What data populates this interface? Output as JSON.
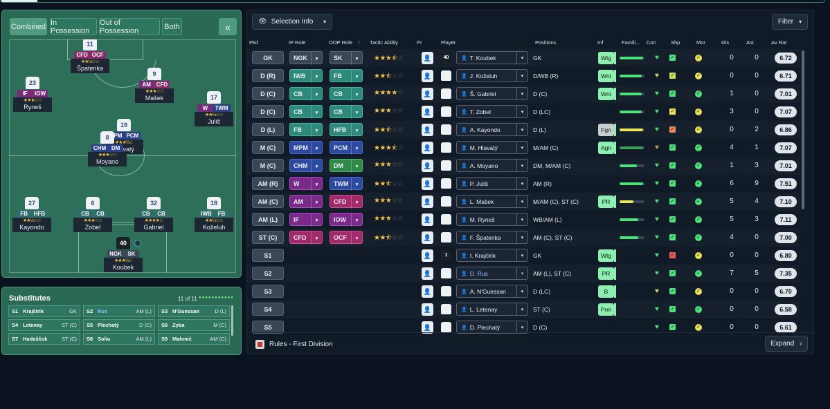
{
  "top": {
    "active_tab": ""
  },
  "view_modes": [
    "Combined",
    "In Possession",
    "Out of Possession",
    "Both"
  ],
  "collapse_icon": "double-chevron-left-icon",
  "pitch_players": [
    {
      "num": "11",
      "r1": "CFD",
      "r2": "OCF",
      "c1": "r-st",
      "c2": "r-st",
      "stars": "★★½☆☆",
      "name": "Špatenka"
    },
    {
      "num": "23",
      "r1": "IF",
      "r2": "IOW",
      "c1": "r-att",
      "c2": "r-att",
      "stars": "★★★☆☆",
      "name": "Ryneš"
    },
    {
      "num": "9",
      "r1": "AM",
      "r2": "CFD",
      "c1": "r-att",
      "c2": "r-st",
      "stars": "★★★☆☆",
      "name": "Mašek"
    },
    {
      "num": "17",
      "r1": "W",
      "r2": "TWM",
      "c1": "r-att",
      "c2": "r-mid",
      "stars": "★★½☆☆",
      "name": "Juliš"
    },
    {
      "num": "19",
      "r1": "MPM",
      "r2": "PCM",
      "c1": "r-mid",
      "c2": "r-mid",
      "stars": "★★★½☆",
      "name": "Hlavatý"
    },
    {
      "num": "8",
      "r1": "CHM",
      "r2": "DM",
      "c1": "r-mid",
      "c2": "r-mid",
      "stars": "★★★☆☆",
      "name": "Moyano"
    },
    {
      "num": "27",
      "r1": "FB",
      "r2": "HFB",
      "c1": "r-def",
      "c2": "r-def",
      "stars": "★★½☆☆",
      "name": "Kayondo"
    },
    {
      "num": "6",
      "r1": "CB",
      "r2": "CB",
      "c1": "r-def",
      "c2": "r-def",
      "stars": "★★★☆☆",
      "name": "Zobel"
    },
    {
      "num": "32",
      "r1": "CB",
      "r2": "CB",
      "c1": "r-def",
      "c2": "r-def",
      "stars": "★★★★☆",
      "name": "Gabriel"
    },
    {
      "num": "18",
      "r1": "IWB",
      "r2": "FB",
      "c1": "r-def",
      "c2": "r-def",
      "stars": "★★½☆☆",
      "name": "Koželuh"
    },
    {
      "num": "40",
      "r1": "NGK",
      "r2": "SK",
      "c1": "r-gk",
      "c2": "r-gk",
      "stars": "★★★½☆",
      "name": "Koubek"
    }
  ],
  "subs": {
    "title": "Substitutes",
    "count": "11 of 11",
    "items": [
      {
        "slot": "S1",
        "name": "Krajčirik",
        "pos": "GK",
        "blue": false
      },
      {
        "slot": "S2",
        "name": "Rus",
        "pos": "AM (L)",
        "blue": true
      },
      {
        "slot": "S3",
        "name": "N'Guessan",
        "pos": "D (L)",
        "blue": false
      },
      {
        "slot": "S4",
        "name": "Letenay",
        "pos": "ST (C)",
        "blue": false
      },
      {
        "slot": "S5",
        "name": "Plechatý",
        "pos": "D (C)",
        "blue": false
      },
      {
        "slot": "S6",
        "name": "Zyba",
        "pos": "M (C)",
        "blue": false
      },
      {
        "slot": "S7",
        "name": "Hadaščok",
        "pos": "ST (C)",
        "blue": false
      },
      {
        "slot": "S8",
        "name": "Soliu",
        "pos": "AM (L)",
        "blue": false
      },
      {
        "slot": "S9",
        "name": "Mahmić",
        "pos": "AM (C)",
        "blue": false
      }
    ]
  },
  "toolbar": {
    "selection_info": "Selection Info",
    "filter": "Filter"
  },
  "columns": [
    "Pkd",
    "IP Role",
    "OOP Role",
    "Tactic Ability",
    "PI",
    "Player",
    "Positions",
    "Inf",
    "Famili...",
    "Con",
    "Shp",
    "Mor",
    "Gls",
    "Ast",
    "Av Rat"
  ],
  "rows": [
    {
      "pkd": "GK",
      "ip": "NGK",
      "ipc": "c-gk",
      "oop": "SK",
      "oopc": "c-gk",
      "stars": 3.5,
      "shirt": "40",
      "gk": true,
      "player": "T. Koubek",
      "blue": false,
      "pos": "GK",
      "inf": "Wtg",
      "infc": "",
      "fam": 0.95,
      "famc": "#4ee07a",
      "con": "#4ee07a",
      "shp": "#4ee07a",
      "mor": "#e8e05a",
      "gls": "0",
      "ast": "0",
      "av": "6.72"
    },
    {
      "pkd": "D (R)",
      "ip": "IWB",
      "ipc": "c-def",
      "oop": "FB",
      "oopc": "c-def",
      "stars": 2.5,
      "shirt": "",
      "gk": false,
      "player": "J. Koželuh",
      "blue": false,
      "pos": "D/WB (R)",
      "inf": "Wnt",
      "infc": "",
      "fam": 0.9,
      "famc": "#4ee07a",
      "con": "#c8e05a",
      "shp": "#c8e05a",
      "mor": "#e8e05a",
      "gls": "0",
      "ast": "0",
      "av": "6.71"
    },
    {
      "pkd": "D (C)",
      "ip": "CB",
      "ipc": "c-def",
      "oop": "CB",
      "oopc": "c-def",
      "stars": 4,
      "shirt": "",
      "gk": false,
      "player": "Š. Gabriel",
      "blue": false,
      "pos": "D (C)",
      "inf": "Wnt",
      "infc": "",
      "fam": 0.9,
      "famc": "#4ee07a",
      "con": "#4ee07a",
      "shp": "#4ee07a",
      "mor": "#4ee07a",
      "gls": "1",
      "ast": "0",
      "av": "7.01"
    },
    {
      "pkd": "D (C)",
      "ip": "CB",
      "ipc": "c-def",
      "oop": "CB",
      "oopc": "c-def",
      "stars": 3,
      "shirt": "",
      "gk": false,
      "player": "T. Zobel",
      "blue": false,
      "pos": "D (LC)",
      "inf": "",
      "infc": "",
      "fam": 0.9,
      "famc": "#4ee07a",
      "con": "#4ee07a",
      "shp": "#e8e05a",
      "mor": "#e8e05a",
      "gls": "3",
      "ast": "0",
      "av": "7.07"
    },
    {
      "pkd": "D (L)",
      "ip": "FB",
      "ipc": "c-def",
      "oop": "HFB",
      "oopc": "c-def",
      "stars": 2.5,
      "shirt": "",
      "gk": false,
      "player": "A. Kayondo",
      "blue": false,
      "pos": "D (L)",
      "inf": "Fgn",
      "infc": "gray",
      "fam": 0.95,
      "famc": "#f0e85a",
      "con": "#4ee07a",
      "shp": "#e88a5a",
      "mor": "#e8e05a",
      "gls": "0",
      "ast": "2",
      "av": "6.86"
    },
    {
      "pkd": "M (C)",
      "ip": "MPM",
      "ipc": "c-mid",
      "oop": "PCM",
      "oopc": "c-mid",
      "stars": 3.5,
      "shirt": "",
      "gk": false,
      "player": "M. Hlavatý",
      "blue": false,
      "pos": "M/AM (C)",
      "inf": "Agn",
      "infc": "",
      "fam": 0.95,
      "famc": "#3aa05a",
      "con": "#c8a05a",
      "shp": "#4ee07a",
      "mor": "#4ee07a",
      "gls": "4",
      "ast": "1",
      "av": "7.07"
    },
    {
      "pkd": "M (C)",
      "ip": "CHM",
      "ipc": "c-mid",
      "oop": "DM",
      "oopc": "c-dm",
      "stars": 3,
      "shirt": "",
      "gk": false,
      "player": "A. Moyano",
      "blue": false,
      "pos": "DM, M/AM (C)",
      "inf": "",
      "infc": "",
      "fam": 0.7,
      "famc": "#4ee07a",
      "con": "#4ee07a",
      "shp": "#4ee07a",
      "mor": "#4ee07a",
      "gls": "1",
      "ast": "3",
      "av": "7.01"
    },
    {
      "pkd": "AM (R)",
      "ip": "W",
      "ipc": "c-att",
      "oop": "TWM",
      "oopc": "c-mid",
      "stars": 2.5,
      "shirt": "",
      "gk": false,
      "player": "P. Juliš",
      "blue": false,
      "pos": "AM (R)",
      "inf": "",
      "infc": "",
      "fam": 0.95,
      "famc": "#4ee07a",
      "con": "#4ee07a",
      "shp": "#4ee07a",
      "mor": "#4ee07a",
      "gls": "6",
      "ast": "9",
      "av": "7.51"
    },
    {
      "pkd": "AM (C)",
      "ip": "AM",
      "ipc": "c-att",
      "oop": "CFD",
      "oopc": "c-st",
      "stars": 3,
      "shirt": "",
      "gk": false,
      "player": "L. Mašek",
      "blue": false,
      "pos": "M/AM (C), ST (C)",
      "inf": "PR",
      "infc": "",
      "fam": 0.55,
      "famc": "#f0e85a",
      "con": "#4ee07a",
      "shp": "#4ee07a",
      "mor": "#4ee07a",
      "gls": "5",
      "ast": "4",
      "av": "7.10"
    },
    {
      "pkd": "AM (L)",
      "ip": "IF",
      "ipc": "c-att",
      "oop": "IOW",
      "oopc": "c-att",
      "stars": 3,
      "shirt": "",
      "gk": false,
      "player": "M. Ryneš",
      "blue": false,
      "pos": "WB/AM (L)",
      "inf": "",
      "infc": "",
      "fam": 0.75,
      "famc": "#4ee07a",
      "con": "#4ee07a",
      "shp": "#4ee07a",
      "mor": "#4ee07a",
      "gls": "5",
      "ast": "3",
      "av": "7.11"
    },
    {
      "pkd": "ST (C)",
      "ip": "CFD",
      "ipc": "c-st",
      "oop": "OCF",
      "oopc": "c-st",
      "stars": 2.5,
      "shirt": "",
      "gk": false,
      "player": "F. Špatenka",
      "blue": false,
      "pos": "AM (C), ST (C)",
      "inf": "",
      "infc": "",
      "fam": 0.75,
      "famc": "#4ee07a",
      "con": "#4ee07a",
      "shp": "#4ee07a",
      "mor": "#4ee07a",
      "gls": "4",
      "ast": "0",
      "av": "7.00"
    },
    {
      "pkd": "S1",
      "ip": "",
      "ipc": "",
      "oop": "",
      "oopc": "",
      "stars": 0,
      "shirt": "1",
      "gk": true,
      "player": "I. Krajčirik",
      "blue": false,
      "pos": "GK",
      "inf": "Wtg",
      "infc": "",
      "fam": 0,
      "famc": "",
      "con": "#4ee07a",
      "shp": "#e85a5a",
      "mor": "#e8e05a",
      "gls": "0",
      "ast": "0",
      "av": "6.80"
    },
    {
      "pkd": "S2",
      "ip": "",
      "ipc": "",
      "oop": "",
      "oopc": "",
      "stars": 0,
      "shirt": "",
      "gk": false,
      "player": "D. Rus",
      "blue": true,
      "pos": "AM (L), ST (C)",
      "inf": "PR",
      "infc": "",
      "fam": 0,
      "famc": "",
      "con": "#4ee07a",
      "shp": "#4ee07a",
      "mor": "#4ee07a",
      "gls": "7",
      "ast": "5",
      "av": "7.35"
    },
    {
      "pkd": "S3",
      "ip": "",
      "ipc": "",
      "oop": "",
      "oopc": "",
      "stars": 0,
      "shirt": "",
      "gk": false,
      "player": "A. N'Guessan",
      "blue": false,
      "pos": "D (LC)",
      "inf": "B",
      "infc": "",
      "fam": 0,
      "famc": "",
      "con": "#c8e05a",
      "shp": "#4ee07a",
      "mor": "#e8e05a",
      "gls": "0",
      "ast": "0",
      "av": "6.70"
    },
    {
      "pkd": "S4",
      "ip": "",
      "ipc": "",
      "oop": "",
      "oopc": "",
      "stars": 0,
      "shirt": "",
      "gk": false,
      "player": "L. Letenay",
      "blue": false,
      "pos": "ST (C)",
      "inf": "Prm",
      "infc": "",
      "fam": 0,
      "famc": "",
      "con": "#4ee07a",
      "shp": "#4ee07a",
      "mor": "#4ee07a",
      "gls": "0",
      "ast": "0",
      "av": "6.58"
    },
    {
      "pkd": "S5",
      "ip": "",
      "ipc": "",
      "oop": "",
      "oopc": "",
      "stars": 0,
      "shirt": "",
      "gk": false,
      "player": "D. Plechatý",
      "blue": false,
      "pos": "D (C)",
      "inf": "",
      "infc": "",
      "fam": 0,
      "famc": "",
      "con": "#4ee07a",
      "shp": "#4ee07a",
      "mor": "#e8e05a",
      "gls": "0",
      "ast": "0",
      "av": "6.61"
    }
  ],
  "footer": {
    "rules": "Rules - First Division",
    "expand": "Expand"
  }
}
